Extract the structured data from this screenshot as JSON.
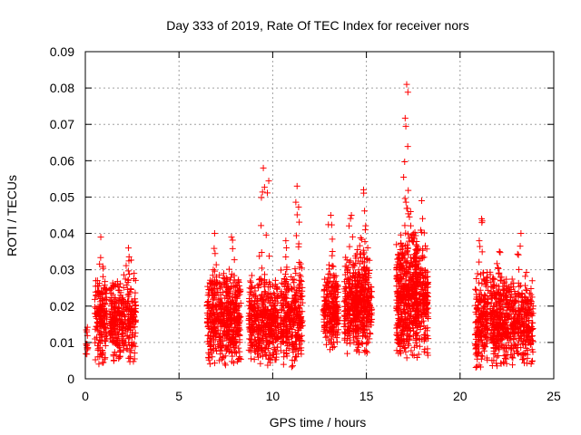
{
  "chart_data": {
    "type": "scatter",
    "title": "Day 333 of 2019, Rate Of TEC Index for receiver nors",
    "xlabel": "GPS time / hours",
    "ylabel": "ROTI / TECUs",
    "xlim": [
      0,
      25
    ],
    "ylim": [
      0,
      0.09
    ],
    "xticks": [
      0,
      5,
      10,
      15,
      20,
      25
    ],
    "xtick_labels": [
      "0",
      "5",
      "10",
      "15",
      "20",
      "25"
    ],
    "yticks": [
      0,
      0.01,
      0.02,
      0.03,
      0.04,
      0.05,
      0.06,
      0.07,
      0.08,
      0.09
    ],
    "ytick_labels": [
      "0",
      "0.01",
      "0.02",
      "0.03",
      "0.04",
      "0.05",
      "0.06",
      "0.07",
      "0.08",
      "0.09"
    ],
    "grid": true,
    "marker": "+",
    "marker_color": "#ff0000",
    "series": [
      {
        "name": "ROTI",
        "clusters": [
          {
            "x": [
              0.0,
              0.15
            ],
            "y": [
              0.004,
              0.016
            ],
            "count": 14
          },
          {
            "x": [
              0.5,
              1.15
            ],
            "y": [
              0.003,
              0.029
            ],
            "count": 170,
            "peak": 0.039
          },
          {
            "x": [
              1.3,
              1.9
            ],
            "y": [
              0.003,
              0.029
            ],
            "count": 150,
            "peak": 0.029
          },
          {
            "x": [
              1.9,
              2.7
            ],
            "y": [
              0.003,
              0.03
            ],
            "count": 170,
            "peak": 0.036
          },
          {
            "x": [
              6.5,
              7.3
            ],
            "y": [
              0.003,
              0.03
            ],
            "count": 220,
            "peak": 0.04
          },
          {
            "x": [
              7.3,
              8.3
            ],
            "y": [
              0.003,
              0.03
            ],
            "count": 300,
            "peak": 0.039
          },
          {
            "x": [
              8.7,
              10.3
            ],
            "y": [
              0.002,
              0.03
            ],
            "count": 440,
            "peak": 0.058
          },
          {
            "x": [
              10.4,
              11.0
            ],
            "y": [
              0.003,
              0.03
            ],
            "count": 140,
            "peak": 0.038
          },
          {
            "x": [
              11.0,
              11.6
            ],
            "y": [
              0.003,
              0.032
            ],
            "count": 160,
            "peak": 0.053
          },
          {
            "x": [
              12.7,
              13.5
            ],
            "y": [
              0.007,
              0.032
            ],
            "count": 230,
            "peak": 0.045
          },
          {
            "x": [
              13.8,
              14.6
            ],
            "y": [
              0.006,
              0.035
            ],
            "count": 230,
            "peak": 0.045
          },
          {
            "x": [
              14.4,
              15.3
            ],
            "y": [
              0.005,
              0.038
            ],
            "count": 270,
            "peak": 0.052
          },
          {
            "x": [
              16.6,
              17.7
            ],
            "y": [
              0.004,
              0.042
            ],
            "count": 460,
            "peak": 0.081
          },
          {
            "x": [
              17.6,
              18.3
            ],
            "y": [
              0.005,
              0.04
            ],
            "count": 230,
            "peak": 0.049
          },
          {
            "x": [
              20.8,
              21.5
            ],
            "y": [
              0.002,
              0.03
            ],
            "count": 200,
            "peak": 0.044
          },
          {
            "x": [
              21.6,
              22.6
            ],
            "y": [
              0.002,
              0.03
            ],
            "count": 300,
            "peak": 0.035
          },
          {
            "x": [
              22.6,
              23.9
            ],
            "y": [
              0.002,
              0.03
            ],
            "count": 300,
            "peak": 0.04
          }
        ]
      }
    ]
  }
}
